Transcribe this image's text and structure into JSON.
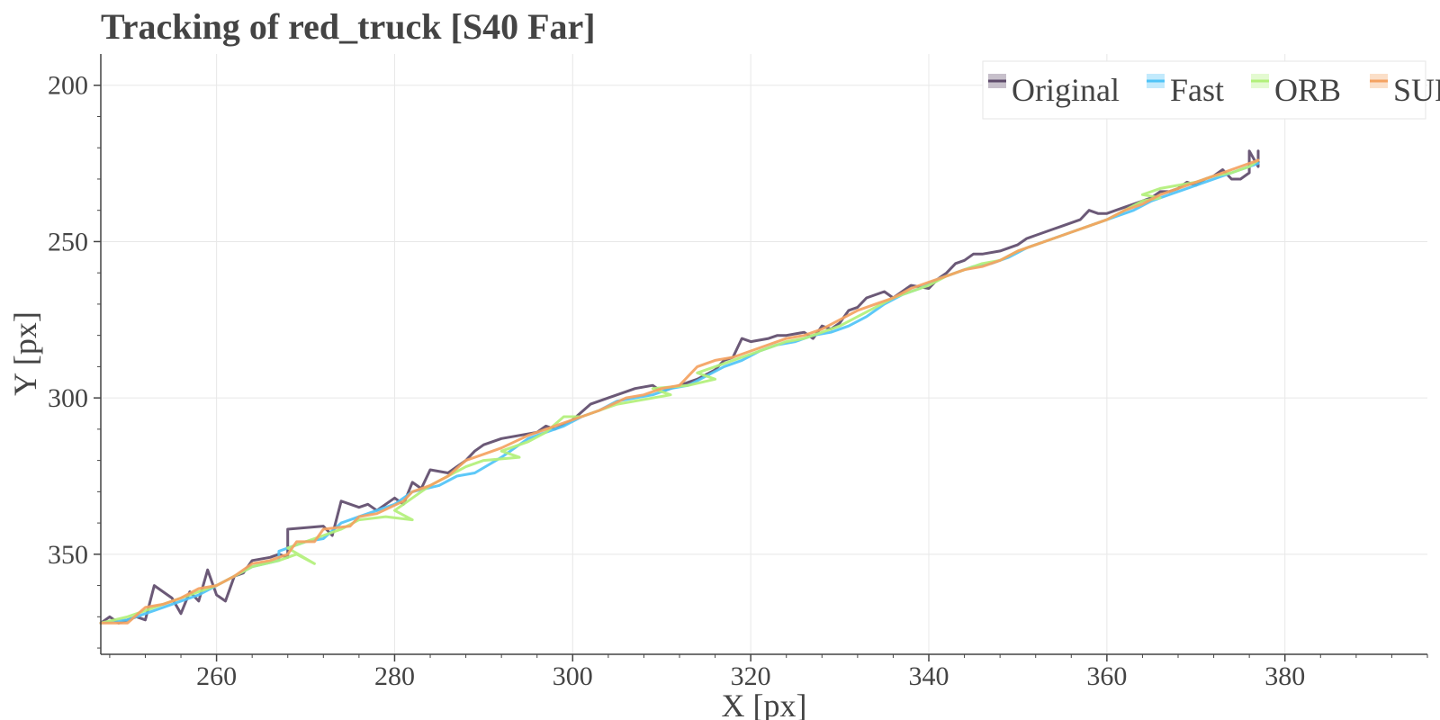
{
  "chart_data": {
    "type": "line",
    "title": "Tracking of red_truck [S40 Far]",
    "xlabel": "X [px]",
    "ylabel": "Y [px]",
    "xlim": [
      247,
      396
    ],
    "ylim": [
      382,
      190
    ],
    "y_inverted": true,
    "x_ticks": [
      260,
      280,
      300,
      320,
      340,
      360,
      380
    ],
    "y_ticks": [
      200,
      250,
      300,
      350
    ],
    "grid": true,
    "legend_position": "top-right",
    "series": [
      {
        "name": "Original",
        "color": "#5e4b6b",
        "values": [
          [
            247,
            372
          ],
          [
            248,
            370
          ],
          [
            249,
            372
          ],
          [
            251,
            370
          ],
          [
            252,
            371
          ],
          [
            253,
            360
          ],
          [
            255,
            364
          ],
          [
            256,
            369
          ],
          [
            257,
            362
          ],
          [
            258,
            365
          ],
          [
            259,
            355
          ],
          [
            260,
            363
          ],
          [
            261,
            365
          ],
          [
            262,
            357
          ],
          [
            263,
            356
          ],
          [
            264,
            352
          ],
          [
            266,
            351
          ],
          [
            267,
            350
          ],
          [
            268,
            351
          ],
          [
            268,
            342
          ],
          [
            272,
            341
          ],
          [
            273,
            344
          ],
          [
            274,
            333
          ],
          [
            276,
            335
          ],
          [
            277,
            334
          ],
          [
            278,
            336
          ],
          [
            280,
            332
          ],
          [
            281,
            334
          ],
          [
            282,
            327
          ],
          [
            283,
            329
          ],
          [
            284,
            323
          ],
          [
            286,
            324
          ],
          [
            288,
            320
          ],
          [
            289,
            317
          ],
          [
            290,
            315
          ],
          [
            292,
            313
          ],
          [
            294,
            312
          ],
          [
            296,
            311
          ],
          [
            297,
            309
          ],
          [
            298,
            310
          ],
          [
            300,
            307
          ],
          [
            302,
            302
          ],
          [
            304,
            300
          ],
          [
            306,
            298
          ],
          [
            307,
            297
          ],
          [
            309,
            296
          ],
          [
            310,
            298
          ],
          [
            312,
            296
          ],
          [
            314,
            294
          ],
          [
            316,
            291
          ],
          [
            317,
            288
          ],
          [
            318,
            287
          ],
          [
            319,
            281
          ],
          [
            320,
            282
          ],
          [
            322,
            281
          ],
          [
            323,
            280
          ],
          [
            324,
            280
          ],
          [
            326,
            279
          ],
          [
            327,
            281
          ],
          [
            328,
            277
          ],
          [
            329,
            278
          ],
          [
            330,
            276
          ],
          [
            331,
            272
          ],
          [
            332,
            271
          ],
          [
            333,
            268
          ],
          [
            335,
            266
          ],
          [
            336,
            268
          ],
          [
            338,
            264
          ],
          [
            340,
            265
          ],
          [
            341,
            262
          ],
          [
            342,
            260
          ],
          [
            343,
            257
          ],
          [
            344,
            256
          ],
          [
            345,
            254
          ],
          [
            346,
            254
          ],
          [
            348,
            253
          ],
          [
            349,
            252
          ],
          [
            350,
            251
          ],
          [
            351,
            249
          ],
          [
            352,
            248
          ],
          [
            353,
            247
          ],
          [
            354,
            246
          ],
          [
            355,
            245
          ],
          [
            356,
            244
          ],
          [
            357,
            243
          ],
          [
            358,
            240
          ],
          [
            359,
            241
          ],
          [
            360,
            241
          ],
          [
            361,
            240
          ],
          [
            362,
            239
          ],
          [
            363,
            238
          ],
          [
            364,
            237
          ],
          [
            365,
            236
          ],
          [
            366,
            234
          ],
          [
            367,
            234
          ],
          [
            368,
            233
          ],
          [
            369,
            231
          ],
          [
            370,
            232
          ],
          [
            371,
            230
          ],
          [
            372,
            229
          ],
          [
            373,
            227
          ],
          [
            374,
            230
          ],
          [
            375,
            230
          ],
          [
            376,
            228
          ],
          [
            376,
            221
          ],
          [
            377,
            226
          ],
          [
            377,
            221
          ]
        ]
      },
      {
        "name": "Fast",
        "color": "#4fc3f7",
        "values": [
          [
            247,
            372
          ],
          [
            250,
            371
          ],
          [
            252,
            369
          ],
          [
            254,
            367
          ],
          [
            256,
            365
          ],
          [
            258,
            363
          ],
          [
            260,
            360
          ],
          [
            262,
            357
          ],
          [
            264,
            354
          ],
          [
            267,
            352
          ],
          [
            267,
            349
          ],
          [
            270,
            346
          ],
          [
            272,
            345
          ],
          [
            274,
            340
          ],
          [
            276,
            338
          ],
          [
            278,
            336
          ],
          [
            280,
            334
          ],
          [
            282,
            330
          ],
          [
            285,
            328
          ],
          [
            287,
            325
          ],
          [
            289,
            324
          ],
          [
            292,
            319
          ],
          [
            295,
            313
          ],
          [
            297,
            311
          ],
          [
            299,
            309
          ],
          [
            301,
            306
          ],
          [
            303,
            304
          ],
          [
            305,
            301
          ],
          [
            307,
            300
          ],
          [
            309,
            299
          ],
          [
            311,
            297
          ],
          [
            313,
            296
          ],
          [
            315,
            293
          ],
          [
            317,
            290
          ],
          [
            319,
            288
          ],
          [
            321,
            285
          ],
          [
            323,
            283
          ],
          [
            325,
            282
          ],
          [
            327,
            280
          ],
          [
            329,
            279
          ],
          [
            331,
            277
          ],
          [
            333,
            274
          ],
          [
            335,
            270
          ],
          [
            337,
            267
          ],
          [
            339,
            265
          ],
          [
            341,
            262
          ],
          [
            343,
            260
          ],
          [
            345,
            258
          ],
          [
            347,
            257
          ],
          [
            349,
            255
          ],
          [
            351,
            252
          ],
          [
            353,
            250
          ],
          [
            355,
            248
          ],
          [
            357,
            246
          ],
          [
            359,
            244
          ],
          [
            361,
            242
          ],
          [
            363,
            240
          ],
          [
            365,
            237
          ],
          [
            367,
            235
          ],
          [
            369,
            233
          ],
          [
            371,
            231
          ],
          [
            373,
            229
          ],
          [
            375,
            227
          ],
          [
            377,
            225
          ]
        ]
      },
      {
        "name": "ORB",
        "color": "#b2f07a",
        "values": [
          [
            247,
            372
          ],
          [
            250,
            370
          ],
          [
            252,
            368
          ],
          [
            254,
            366
          ],
          [
            256,
            364
          ],
          [
            258,
            362
          ],
          [
            260,
            360
          ],
          [
            262,
            357
          ],
          [
            264,
            354
          ],
          [
            267,
            352
          ],
          [
            269,
            350
          ],
          [
            271,
            353
          ],
          [
            268,
            348
          ],
          [
            270,
            346
          ],
          [
            272,
            344
          ],
          [
            274,
            342
          ],
          [
            276,
            339
          ],
          [
            279,
            338
          ],
          [
            282,
            339
          ],
          [
            280,
            336
          ],
          [
            282,
            332
          ],
          [
            284,
            328
          ],
          [
            286,
            325
          ],
          [
            288,
            322
          ],
          [
            290,
            320
          ],
          [
            294,
            319
          ],
          [
            292,
            317
          ],
          [
            295,
            314
          ],
          [
            297,
            311
          ],
          [
            299,
            306
          ],
          [
            301,
            306
          ],
          [
            303,
            304
          ],
          [
            305,
            302
          ],
          [
            307,
            301
          ],
          [
            311,
            299
          ],
          [
            309,
            297
          ],
          [
            313,
            296
          ],
          [
            316,
            294
          ],
          [
            314,
            292
          ],
          [
            316,
            290
          ],
          [
            318,
            288
          ],
          [
            320,
            286
          ],
          [
            322,
            284
          ],
          [
            324,
            282
          ],
          [
            326,
            281
          ],
          [
            328,
            279
          ],
          [
            330,
            277
          ],
          [
            332,
            274
          ],
          [
            334,
            271
          ],
          [
            336,
            268
          ],
          [
            338,
            266
          ],
          [
            340,
            264
          ],
          [
            342,
            261
          ],
          [
            344,
            259
          ],
          [
            346,
            257
          ],
          [
            348,
            256
          ],
          [
            350,
            253
          ],
          [
            352,
            251
          ],
          [
            354,
            249
          ],
          [
            356,
            247
          ],
          [
            358,
            245
          ],
          [
            360,
            243
          ],
          [
            362,
            240
          ],
          [
            364,
            237
          ],
          [
            366,
            236
          ],
          [
            364,
            235
          ],
          [
            366,
            233
          ],
          [
            368,
            232
          ],
          [
            370,
            231
          ],
          [
            372,
            229
          ],
          [
            374,
            228
          ],
          [
            376,
            226
          ],
          [
            377,
            224
          ]
        ]
      },
      {
        "name": "SURF",
        "color": "#f4a261",
        "values": [
          [
            247,
            372
          ],
          [
            250,
            372
          ],
          [
            252,
            367
          ],
          [
            254,
            366
          ],
          [
            256,
            364
          ],
          [
            258,
            361
          ],
          [
            260,
            360
          ],
          [
            262,
            357
          ],
          [
            264,
            353
          ],
          [
            266,
            352
          ],
          [
            268,
            350
          ],
          [
            269,
            346
          ],
          [
            271,
            346
          ],
          [
            272,
            342
          ],
          [
            275,
            341
          ],
          [
            276,
            338
          ],
          [
            278,
            337
          ],
          [
            281,
            333
          ],
          [
            282,
            330
          ],
          [
            284,
            328
          ],
          [
            286,
            325
          ],
          [
            288,
            320
          ],
          [
            290,
            318
          ],
          [
            292,
            316
          ],
          [
            295,
            312
          ],
          [
            297,
            310
          ],
          [
            299,
            308
          ],
          [
            301,
            306
          ],
          [
            303,
            304
          ],
          [
            306,
            300
          ],
          [
            308,
            299
          ],
          [
            310,
            297
          ],
          [
            312,
            296
          ],
          [
            314,
            290
          ],
          [
            316,
            288
          ],
          [
            318,
            287
          ],
          [
            320,
            285
          ],
          [
            322,
            283
          ],
          [
            324,
            281
          ],
          [
            326,
            280
          ],
          [
            328,
            278
          ],
          [
            330,
            275
          ],
          [
            332,
            272
          ],
          [
            334,
            270
          ],
          [
            336,
            268
          ],
          [
            338,
            265
          ],
          [
            340,
            263
          ],
          [
            342,
            261
          ],
          [
            344,
            259
          ],
          [
            346,
            258
          ],
          [
            348,
            256
          ],
          [
            350,
            253
          ],
          [
            352,
            251
          ],
          [
            354,
            249
          ],
          [
            356,
            247
          ],
          [
            358,
            245
          ],
          [
            360,
            243
          ],
          [
            362,
            240
          ],
          [
            364,
            238
          ],
          [
            366,
            235
          ],
          [
            368,
            233
          ],
          [
            370,
            231
          ],
          [
            372,
            229
          ],
          [
            374,
            227
          ],
          [
            377,
            224
          ]
        ]
      }
    ]
  }
}
